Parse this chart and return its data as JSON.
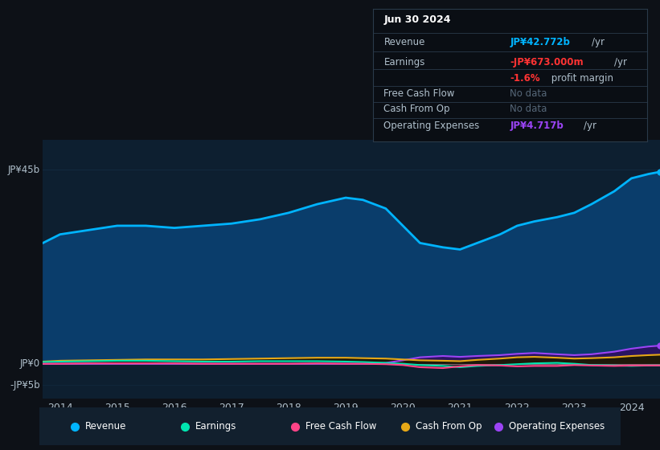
{
  "background_color": "#0d1117",
  "plot_bg_color": "#0d1f30",
  "years": [
    2013.7,
    2014.0,
    2014.5,
    2015.0,
    2015.5,
    2016.0,
    2016.5,
    2017.0,
    2017.5,
    2018.0,
    2018.5,
    2019.0,
    2019.3,
    2019.7,
    2020.0,
    2020.3,
    2020.7,
    2021.0,
    2021.3,
    2021.7,
    2022.0,
    2022.3,
    2022.7,
    2023.0,
    2023.3,
    2023.7,
    2024.0,
    2024.3,
    2024.5
  ],
  "revenue": [
    28,
    30,
    31,
    32,
    32,
    31.5,
    32,
    32.5,
    33.5,
    35,
    37,
    38.5,
    38,
    36,
    32,
    28,
    27,
    26.5,
    28,
    30,
    32,
    33,
    34,
    35,
    37,
    40,
    43,
    44,
    44.5
  ],
  "earnings": [
    0.4,
    0.5,
    0.6,
    0.7,
    0.7,
    0.6,
    0.5,
    0.5,
    0.6,
    0.6,
    0.6,
    0.5,
    0.4,
    0.2,
    0.0,
    -0.3,
    -0.5,
    -0.8,
    -0.5,
    -0.3,
    -0.1,
    0.1,
    0.2,
    0.0,
    -0.3,
    -0.4,
    -0.5,
    -0.4,
    -0.4
  ],
  "free_cash_flow": [
    0.0,
    0.0,
    0.1,
    0.1,
    0.1,
    0.1,
    0.0,
    0.0,
    0.0,
    0.0,
    0.1,
    0.0,
    0.0,
    -0.1,
    -0.3,
    -0.8,
    -1.0,
    -0.6,
    -0.3,
    -0.4,
    -0.6,
    -0.5,
    -0.5,
    -0.3,
    -0.4,
    -0.5,
    -0.4,
    -0.4,
    -0.4
  ],
  "cash_from_op": [
    0.5,
    0.7,
    0.8,
    0.9,
    1.0,
    1.0,
    1.0,
    1.1,
    1.2,
    1.3,
    1.4,
    1.4,
    1.3,
    1.2,
    1.0,
    0.8,
    0.7,
    0.6,
    0.9,
    1.2,
    1.5,
    1.6,
    1.4,
    1.2,
    1.3,
    1.5,
    1.8,
    2.0,
    2.1
  ],
  "op_expenses": [
    0.0,
    0.0,
    0.0,
    0.0,
    0.0,
    0.0,
    0.0,
    0.0,
    0.0,
    0.0,
    0.0,
    0.0,
    0.0,
    0.2,
    0.8,
    1.5,
    1.8,
    1.6,
    1.8,
    2.0,
    2.3,
    2.5,
    2.2,
    2.0,
    2.2,
    2.8,
    3.5,
    4.0,
    4.2
  ],
  "revenue_line_color": "#00b4ff",
  "revenue_fill_color": "#0a3d6b",
  "earnings_line_color": "#00e5b0",
  "earnings_fill_color": "#0a2a1a",
  "fcf_line_color": "#ff4488",
  "fcf_fill_color": "#3a0a1a",
  "cfop_line_color": "#e6a817",
  "cfop_fill_color": "#1e1a06",
  "opex_line_color": "#9b44f5",
  "opex_fill_color": "#2d1060",
  "xticks": [
    2014,
    2015,
    2016,
    2017,
    2018,
    2019,
    2020,
    2021,
    2022,
    2023,
    2024
  ],
  "ylim_min": -8,
  "ylim_max": 52,
  "y_label_45": "JP¥45b",
  "y_label_0": "JP¥0",
  "y_label_neg5": "-JP¥5b",
  "y_val_45": 45,
  "y_val_0": 0,
  "y_val_neg5": -5,
  "grid_color": "#1a3a55",
  "text_color": "#b0c0cc",
  "infobox_bg": "#0a0e14",
  "infobox_border": "#2a3a4a",
  "infobox_date": "Jun 30 2024",
  "infobox_rev_label": "Revenue",
  "infobox_rev_val": "JP¥42.772b",
  "infobox_rev_unit": "/yr",
  "infobox_rev_color": "#00b4ff",
  "infobox_earn_label": "Earnings",
  "infobox_earn_val": "-JP¥673.000m",
  "infobox_earn_unit": "/yr",
  "infobox_earn_color": "#ff3333",
  "infobox_margin": "-1.6%",
  "infobox_margin_text": " profit margin",
  "infobox_margin_color": "#ff3333",
  "infobox_fcf_label": "Free Cash Flow",
  "infobox_cfop_label": "Cash From Op",
  "infobox_opex_label": "Operating Expenses",
  "infobox_opex_val": "JP¥4.717b",
  "infobox_opex_unit": "/yr",
  "infobox_opex_color": "#9b44f5",
  "infobox_nodata_color": "#556677",
  "legend_items": [
    {
      "label": "Revenue",
      "color": "#00b4ff"
    },
    {
      "label": "Earnings",
      "color": "#00e5b0"
    },
    {
      "label": "Free Cash Flow",
      "color": "#ff4488"
    },
    {
      "label": "Cash From Op",
      "color": "#e6a817"
    },
    {
      "label": "Operating Expenses",
      "color": "#9b44f5"
    }
  ]
}
